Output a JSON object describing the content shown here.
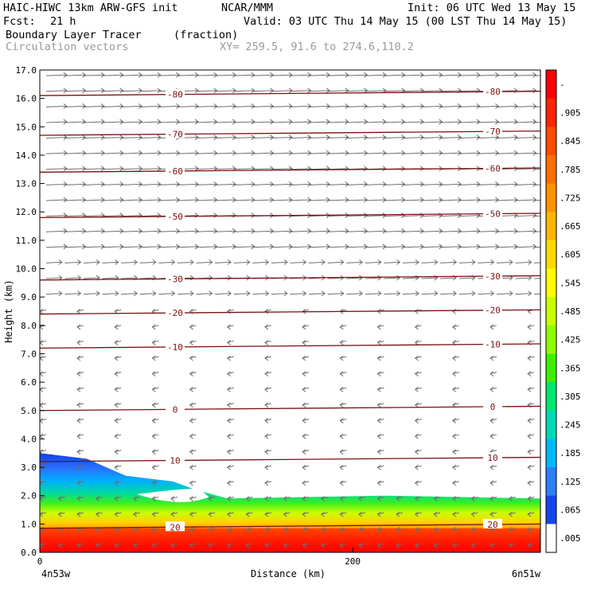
{
  "header": {
    "model": "HAIC-HIWC 13km ARW-GFS init",
    "org": "NCAR/MMM",
    "init": "Init: 06 UTC Wed 13 May 15",
    "fcst_label": "Fcst:",
    "fcst_value": "21 h",
    "valid": "Valid: 03 UTC Thu 14 May 15 (00 LST Thu 14 May 15)",
    "field_name": "Boundary Layer Tracer",
    "field_units": "(fraction)",
    "vector_name": "Circulation vectors",
    "xy_info": "XY= 259.5, 91.6 to 274.6,110.2"
  },
  "colors": {
    "contour": "#7a1010",
    "vector": "#6e6e6e",
    "background": "#ffffff"
  },
  "chart_data": {
    "type": "heatmap",
    "xlabel": "Distance (km)",
    "ylabel": "Height (km)",
    "x_ticks": [
      "0",
      "200"
    ],
    "x_endpoints": [
      "4n53w",
      "6n51w"
    ],
    "xlim": [
      0,
      320
    ],
    "ylim": [
      0,
      17
    ],
    "y_ticks": [
      "0.0",
      "1.0",
      "2.0",
      "3.0",
      "4.0",
      "5.0",
      "6.0",
      "7.0",
      "8.0",
      "9.0",
      "10.0",
      "11.0",
      "12.0",
      "13.0",
      "14.0",
      "15.0",
      "16.0",
      "17.0"
    ],
    "colorbar": {
      "labels": [
        "-",
        ".905",
        ".845",
        ".785",
        ".725",
        ".665",
        ".605",
        ".545",
        ".485",
        ".425",
        ".365",
        ".305",
        ".245",
        ".185",
        ".125",
        ".065",
        ".005"
      ],
      "colors": [
        "#ff0000",
        "#ff2400",
        "#ff4a00",
        "#ff6e00",
        "#ff9200",
        "#ffb600",
        "#ffda00",
        "#ffff00",
        "#c8ff00",
        "#8cff00",
        "#3cf000",
        "#00e66e",
        "#00d8b4",
        "#00b8ff",
        "#2a80ff",
        "#1446f0",
        "#ffffff"
      ]
    },
    "tracer_boundary_km": [
      {
        "x": 0,
        "top": 3.5
      },
      {
        "x": 30,
        "top": 3.3
      },
      {
        "x": 55,
        "top": 2.7
      },
      {
        "x": 85,
        "top": 2.5
      },
      {
        "x": 100,
        "top": 2.2
      },
      {
        "x": 120,
        "top": 1.9
      },
      {
        "x": 220,
        "top": 2.0
      },
      {
        "x": 320,
        "top": 1.9
      }
    ],
    "temperature_contours": [
      {
        "label": "20",
        "y": 0.85
      },
      {
        "label": "10",
        "y": 3.2
      },
      {
        "label": "0",
        "y": 5.0
      },
      {
        "label": "-10",
        "y": 7.2
      },
      {
        "label": "-20",
        "y": 8.4
      },
      {
        "label": "-30",
        "y": 9.6
      },
      {
        "label": "-50",
        "y": 11.8
      },
      {
        "label": "-60",
        "y": 13.4
      },
      {
        "label": "-70",
        "y": 14.7
      },
      {
        "label": "-80",
        "y": 16.1
      }
    ],
    "contour_labels_printed": [
      "20",
      "10",
      "0",
      "-10",
      "-20",
      "-30",
      "-50",
      "-60",
      "-70",
      "-80",
      "20",
      "10",
      "0",
      "-10",
      "-30",
      "-50",
      "-60",
      "-70",
      "-80"
    ],
    "vector_direction": {
      "above_9km": "east",
      "below_9km": "west-southwest"
    }
  }
}
